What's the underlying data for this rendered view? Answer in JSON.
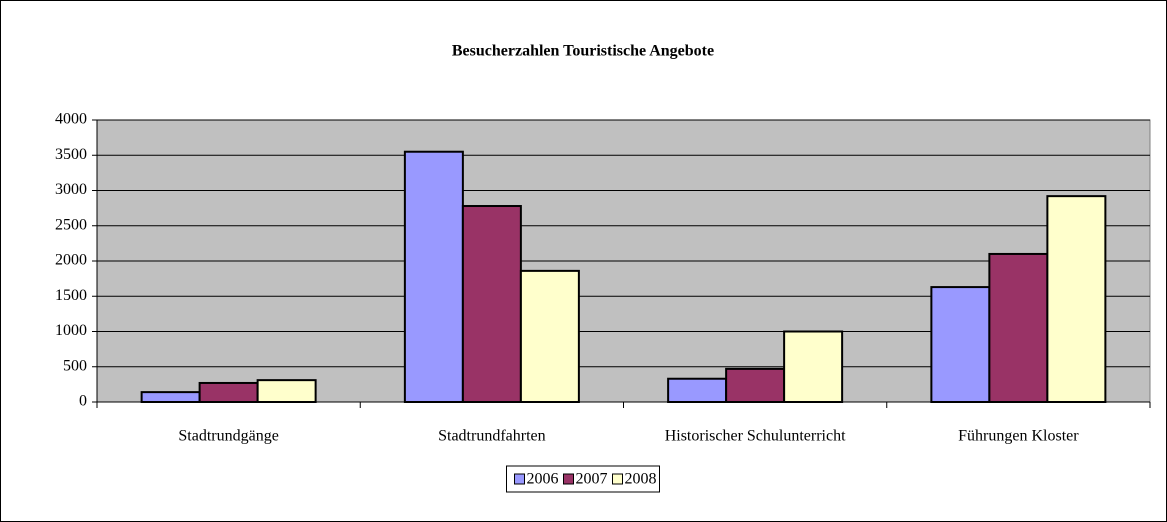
{
  "chart_data": {
    "type": "bar",
    "title": "Besucherzahlen Touristische Angebote",
    "categories": [
      "Stadtrundgänge",
      "Stadtrundfahrten",
      "Historischer Schulunterricht",
      "Führungen Kloster"
    ],
    "series": [
      {
        "name": "2006",
        "color": "#9999ff",
        "values": [
          140,
          3550,
          330,
          1630
        ]
      },
      {
        "name": "2007",
        "color": "#993366",
        "values": [
          270,
          2780,
          470,
          2100
        ]
      },
      {
        "name": "2008",
        "color": "#ffffcc",
        "values": [
          310,
          1860,
          1000,
          2920
        ]
      }
    ],
    "ylim": [
      0,
      4000
    ],
    "yticks": [
      0,
      500,
      1000,
      1500,
      2000,
      2500,
      3000,
      3500,
      4000
    ],
    "grid": true,
    "legend": "bottom"
  }
}
